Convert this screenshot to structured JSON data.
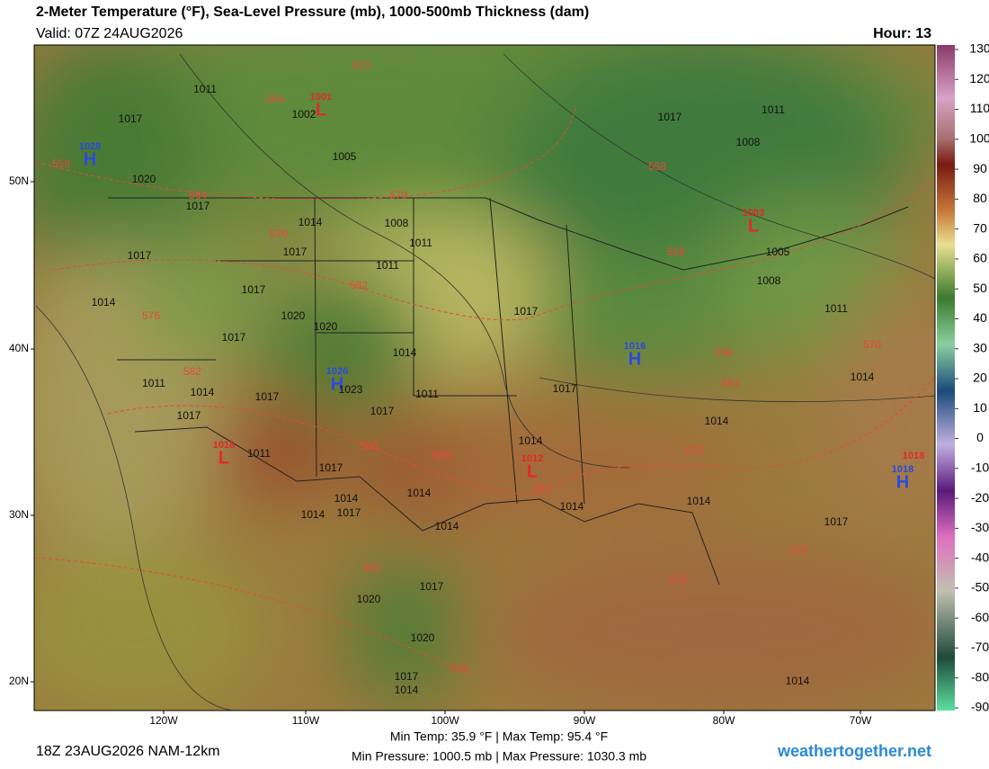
{
  "header": {
    "title": "2-Meter Temperature (°F), Sea-Level Pressure (mb), 1000-500mb Thickness (dam)",
    "valid": "Valid: 07Z 24AUG2026",
    "hour": "Hour: 13"
  },
  "colorbar": {
    "ticks": [
      130,
      120,
      110,
      100,
      90,
      80,
      70,
      60,
      50,
      40,
      30,
      20,
      10,
      0,
      -10,
      -20,
      -30,
      -40,
      -50,
      -60,
      -70,
      -80,
      -90
    ]
  },
  "axes": {
    "lat": [
      "50N",
      "40N",
      "30N",
      "20N"
    ],
    "lon": [
      "120W",
      "110W",
      "100W",
      "90W",
      "80W",
      "70W"
    ]
  },
  "map": {
    "highs": [
      {
        "letter": "H",
        "value": 1028
      },
      {
        "letter": "H",
        "value": 1016
      },
      {
        "letter": "H",
        "value": 1026
      },
      {
        "letter": "H",
        "value": 1018
      }
    ],
    "lows": [
      {
        "letter": "L",
        "value": 1001
      },
      {
        "letter": "L",
        "value": 1003
      },
      {
        "letter": "L",
        "value": 1018
      },
      {
        "letter": "L",
        "value": 1012
      },
      {
        "letter": "",
        "value": 1018
      }
    ],
    "isobars": [
      1011,
      1017,
      1020,
      1017,
      1017,
      1014,
      1017,
      1002,
      1005,
      1014,
      1008,
      1011,
      1017,
      1011,
      1020,
      1020,
      1017,
      1014,
      1023,
      1011,
      1017,
      1017,
      1014,
      1011,
      1017,
      1011,
      1017,
      1014,
      1014,
      1017,
      1014,
      1014,
      1014,
      1017,
      1017,
      1014,
      1014,
      1017,
      1014,
      1017,
      1011,
      1008,
      1005,
      1008,
      1011,
      1014,
      1020,
      1017,
      1020,
      1017,
      1014,
      1014
    ],
    "thickness": [
      570,
      564,
      558,
      564,
      570,
      570,
      582,
      576,
      582,
      588,
      588,
      582,
      558,
      558,
      558,
      564,
      570,
      576,
      576,
      576,
      582,
      576
    ]
  },
  "footer": {
    "run": "18Z 23AUG2026 NAM-12km",
    "temps": "Min Temp:  35.9 °F | Max Temp:  95.4 °F",
    "pressures": "Min Pressure: 1000.5 mb | Max Pressure: 1030.3 mb",
    "site": "weathertogether.net"
  }
}
